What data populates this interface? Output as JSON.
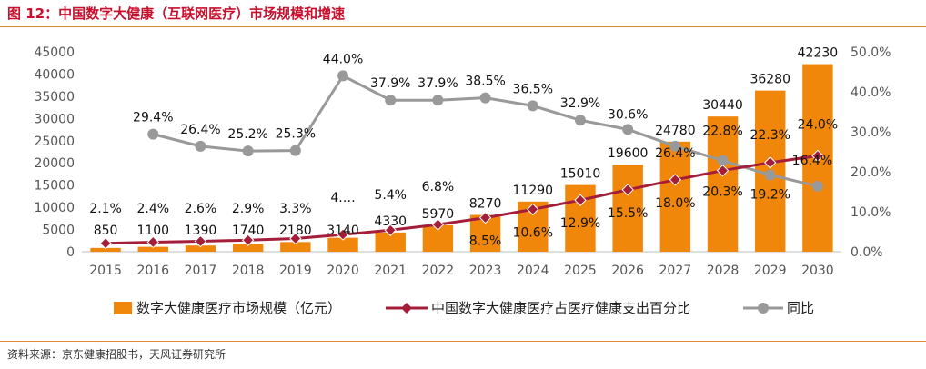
{
  "header": {
    "title": "图 12：中国数字大健康（互联网医疗）市场规模和增速"
  },
  "footer": {
    "source": "资料来源：京东健康招股书，天风证券研究所"
  },
  "colors": {
    "bar": "#f0860a",
    "share_line": "#a41e3a",
    "yoy_line": "#999999",
    "rule": "#e08a34",
    "title": "#c8102e"
  },
  "chart_data": {
    "type": "bar",
    "categories": [
      "2015",
      "2016",
      "2017",
      "2018",
      "2019",
      "2020",
      "2021",
      "2022",
      "2023",
      "2024",
      "2025",
      "2026",
      "2027",
      "2028",
      "2029",
      "2030"
    ],
    "ylim_left": [
      0,
      45000
    ],
    "yticks_left": [
      "0",
      "5000",
      "10000",
      "15000",
      "20000",
      "25000",
      "30000",
      "35000",
      "40000",
      "45000"
    ],
    "ylim_right": [
      0,
      50
    ],
    "yticks_right": [
      "0.0%",
      "10.0%",
      "20.0%",
      "30.0%",
      "40.0%",
      "50.0%"
    ],
    "grid": false,
    "legend_position": "bottom",
    "series": [
      {
        "name": "数字大健康医疗市场规模（亿元）",
        "type": "bar",
        "axis": "left",
        "values": [
          850,
          1100,
          1390,
          1740,
          2180,
          3140,
          4330,
          5970,
          8270,
          11290,
          15010,
          19600,
          24780,
          30440,
          36280,
          42230
        ],
        "labels": [
          "850",
          "1100",
          "1390",
          "1740",
          "2180",
          "3140",
          "4330",
          "5970",
          "8270",
          "11290",
          "15010",
          "19600",
          "24780",
          "30440",
          "36280",
          "42230"
        ]
      },
      {
        "name": "中国数字大健康医疗占医疗健康支出百分比",
        "type": "line",
        "axis": "right",
        "values": [
          2.1,
          2.4,
          2.6,
          2.9,
          3.3,
          4.3,
          5.4,
          6.8,
          8.5,
          10.6,
          12.9,
          15.5,
          18.0,
          20.3,
          22.3,
          24.0
        ],
        "labels": [
          "2.1%",
          "2.4%",
          "2.6%",
          "2.9%",
          "3.3%",
          "4.…",
          "5.4%",
          "6.8%",
          "8.5%",
          "10.6%",
          "12.9%",
          "15.5%",
          "18.0%",
          "20.3%",
          "22.3%",
          "24.0%"
        ]
      },
      {
        "name": "同比",
        "type": "line",
        "axis": "right",
        "values": [
          null,
          29.4,
          26.4,
          25.2,
          25.3,
          44.0,
          37.9,
          37.9,
          38.5,
          36.5,
          32.9,
          30.6,
          26.4,
          22.8,
          19.2,
          16.4
        ],
        "labels": [
          "",
          "29.4%",
          "26.4%",
          "25.2%",
          "25.3%",
          "44.0%",
          "37.9%",
          "37.9%",
          "38.5%",
          "36.5%",
          "32.9%",
          "30.6%",
          "26.4%",
          "22.8%",
          "19.2%",
          "16.4%"
        ]
      }
    ]
  }
}
